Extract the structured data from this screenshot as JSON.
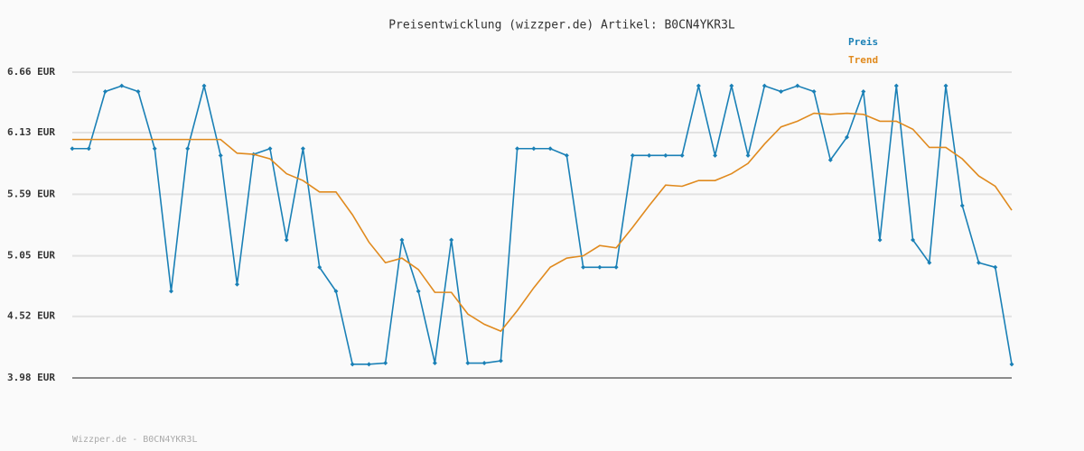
{
  "chart_data": {
    "type": "line",
    "title": "Preisentwicklung (wizzper.de) Artikel: B0CN4YKR3L",
    "footer": "Wizzper.de - B0CN4YKR3L",
    "ylim": [
      3.98,
      6.66
    ],
    "yticks": [
      {
        "value": 3.98,
        "label": "3.98 EUR"
      },
      {
        "value": 4.52,
        "label": "4.52 EUR"
      },
      {
        "value": 5.05,
        "label": "5.05 EUR"
      },
      {
        "value": 5.59,
        "label": "5.59 EUR"
      },
      {
        "value": 6.13,
        "label": "6.13 EUR"
      },
      {
        "value": 6.66,
        "label": "6.66 EUR"
      }
    ],
    "grid": true,
    "legend": "top-right",
    "series": [
      {
        "name": "Preis",
        "color": "#1a80b6",
        "markers": true,
        "values": [
          5.99,
          5.99,
          6.49,
          6.54,
          6.49,
          5.99,
          4.74,
          5.99,
          6.54,
          5.93,
          4.8,
          5.94,
          5.99,
          5.19,
          5.99,
          4.95,
          4.74,
          4.1,
          4.1,
          4.11,
          5.19,
          4.74,
          4.11,
          5.19,
          4.11,
          4.11,
          4.13,
          5.99,
          5.99,
          5.99,
          5.93,
          4.95,
          4.95,
          4.95,
          5.93,
          5.93,
          5.93,
          5.93,
          6.54,
          5.93,
          6.54,
          5.93,
          6.54,
          6.49,
          6.54,
          6.49,
          5.89,
          6.09,
          6.49,
          5.19,
          6.54,
          5.19,
          4.99,
          6.54,
          5.49,
          4.99,
          4.95,
          4.1
        ]
      },
      {
        "name": "Trend",
        "color": "#e08a1e",
        "markers": false,
        "values": [
          6.07,
          6.07,
          6.07,
          6.07,
          6.07,
          6.07,
          6.07,
          6.07,
          6.07,
          6.07,
          5.95,
          5.94,
          5.9,
          5.77,
          5.71,
          5.61,
          5.61,
          5.41,
          5.17,
          4.99,
          5.03,
          4.93,
          4.73,
          4.73,
          4.54,
          4.45,
          4.39,
          4.57,
          4.77,
          4.95,
          5.03,
          5.05,
          5.14,
          5.12,
          5.3,
          5.49,
          5.67,
          5.66,
          5.71,
          5.71,
          5.77,
          5.86,
          6.03,
          6.18,
          6.23,
          6.3,
          6.29,
          6.3,
          6.29,
          6.23,
          6.23,
          6.16,
          6.0,
          6.0,
          5.9,
          5.75,
          5.66,
          5.45
        ]
      }
    ]
  }
}
